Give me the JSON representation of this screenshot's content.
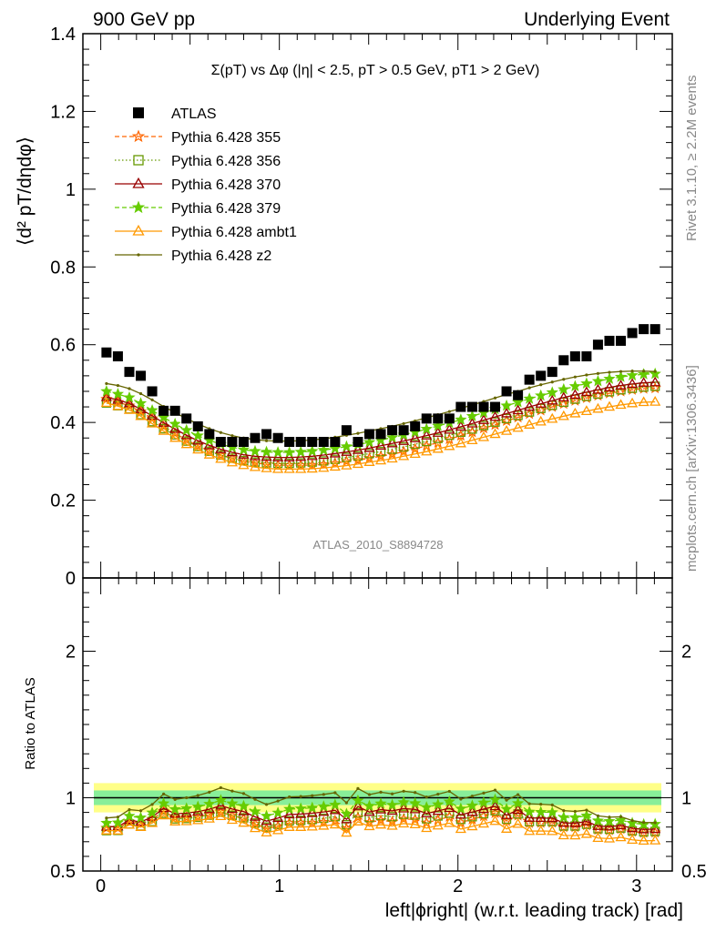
{
  "header": {
    "left": "900 GeV pp",
    "right": "Underlying Event"
  },
  "side_labels": {
    "rivet": "Rivet 3.1.10, ≥ 2.2M events",
    "mcplots": "mcplots.cern.ch [arXiv:1306.3436]"
  },
  "watermark": "ATLAS_2010_S8894728",
  "chart_data": [
    {
      "type": "scatter",
      "panel": "main",
      "title": "Σ(pT) vs Δφ (|η| < 2.5, pT > 0.5 GeV, pT1 > 2 GeV)",
      "ylabel": "⟨d² pT/dηdφ⟩",
      "xlim": [
        -0.1,
        3.2
      ],
      "ylim": [
        0,
        1.4
      ],
      "yticks": [
        "0",
        "0.2",
        "0.4",
        "0.6",
        "0.8",
        "1",
        "1.2",
        "1.4"
      ],
      "legend_placement": "top-left",
      "x": [
        0.032,
        0.096,
        0.16,
        0.224,
        0.288,
        0.352,
        0.416,
        0.48,
        0.544,
        0.608,
        0.672,
        0.736,
        0.8,
        0.864,
        0.928,
        0.992,
        1.056,
        1.12,
        1.184,
        1.248,
        1.312,
        1.376,
        1.44,
        1.504,
        1.568,
        1.632,
        1.696,
        1.76,
        1.824,
        1.888,
        1.952,
        2.016,
        2.08,
        2.144,
        2.208,
        2.272,
        2.336,
        2.4,
        2.464,
        2.528,
        2.592,
        2.656,
        2.72,
        2.784,
        2.848,
        2.912,
        2.976,
        3.04,
        3.104
      ],
      "series": [
        {
          "name": "ATLAS",
          "color": "#000000",
          "marker": "square-filled",
          "values": [
            0.58,
            0.57,
            0.53,
            0.52,
            0.48,
            0.43,
            0.43,
            0.41,
            0.39,
            0.37,
            0.35,
            0.35,
            0.35,
            0.36,
            0.37,
            0.36,
            0.35,
            0.35,
            0.35,
            0.35,
            0.35,
            0.38,
            0.35,
            0.37,
            0.37,
            0.38,
            0.38,
            0.39,
            0.41,
            0.41,
            0.41,
            0.44,
            0.44,
            0.44,
            0.44,
            0.48,
            0.47,
            0.51,
            0.52,
            0.53,
            0.56,
            0.57,
            0.57,
            0.6,
            0.61,
            0.61,
            0.63,
            0.64,
            0.64
          ]
        },
        {
          "name": "Pythia 6.428 355",
          "color": "#ff6600",
          "marker": "star-open",
          "line": "dashed",
          "values": [
            0.46,
            0.452,
            0.443,
            0.428,
            0.41,
            0.39,
            0.372,
            0.355,
            0.34,
            0.327,
            0.316,
            0.307,
            0.3,
            0.296,
            0.292,
            0.29,
            0.29,
            0.29,
            0.29,
            0.292,
            0.295,
            0.3,
            0.303,
            0.308,
            0.313,
            0.318,
            0.325,
            0.332,
            0.34,
            0.348,
            0.357,
            0.366,
            0.375,
            0.385,
            0.394,
            0.404,
            0.413,
            0.422,
            0.431,
            0.44,
            0.448,
            0.456,
            0.463,
            0.469,
            0.475,
            0.48,
            0.484,
            0.487,
            0.488
          ]
        },
        {
          "name": "Pythia 6.428 356",
          "color": "#669900",
          "marker": "square-open",
          "line": "dotted",
          "values": [
            0.45,
            0.443,
            0.435,
            0.42,
            0.402,
            0.384,
            0.368,
            0.352,
            0.338,
            0.326,
            0.316,
            0.308,
            0.302,
            0.298,
            0.296,
            0.295,
            0.295,
            0.296,
            0.298,
            0.301,
            0.305,
            0.31,
            0.314,
            0.32,
            0.325,
            0.331,
            0.337,
            0.344,
            0.351,
            0.359,
            0.367,
            0.375,
            0.383,
            0.392,
            0.401,
            0.41,
            0.418,
            0.427,
            0.436,
            0.444,
            0.452,
            0.46,
            0.467,
            0.473,
            0.479,
            0.484,
            0.488,
            0.491,
            0.493
          ]
        },
        {
          "name": "Pythia 6.428 370",
          "color": "#990000",
          "marker": "triangle-open",
          "line": "solid",
          "values": [
            0.465,
            0.458,
            0.449,
            0.434,
            0.417,
            0.399,
            0.383,
            0.367,
            0.353,
            0.341,
            0.331,
            0.323,
            0.317,
            0.313,
            0.311,
            0.31,
            0.31,
            0.311,
            0.313,
            0.316,
            0.32,
            0.324,
            0.329,
            0.334,
            0.34,
            0.346,
            0.352,
            0.359,
            0.366,
            0.373,
            0.381,
            0.389,
            0.397,
            0.406,
            0.414,
            0.423,
            0.431,
            0.44,
            0.448,
            0.456,
            0.464,
            0.471,
            0.478,
            0.484,
            0.49,
            0.495,
            0.499,
            0.502,
            0.503
          ]
        },
        {
          "name": "Pythia 6.428 379",
          "color": "#66cc00",
          "marker": "star-filled",
          "line": "dashed",
          "values": [
            0.48,
            0.473,
            0.464,
            0.449,
            0.431,
            0.413,
            0.396,
            0.38,
            0.366,
            0.354,
            0.344,
            0.336,
            0.33,
            0.326,
            0.324,
            0.323,
            0.323,
            0.324,
            0.326,
            0.329,
            0.333,
            0.338,
            0.343,
            0.349,
            0.355,
            0.361,
            0.368,
            0.375,
            0.383,
            0.391,
            0.399,
            0.407,
            0.416,
            0.425,
            0.434,
            0.443,
            0.452,
            0.461,
            0.469,
            0.477,
            0.485,
            0.493,
            0.5,
            0.506,
            0.512,
            0.517,
            0.521,
            0.524,
            0.525
          ]
        },
        {
          "name": "Pythia 6.428 ambt1",
          "color": "#ff9900",
          "marker": "triangle-open",
          "line": "solid",
          "values": [
            0.45,
            0.442,
            0.432,
            0.416,
            0.397,
            0.378,
            0.36,
            0.344,
            0.33,
            0.317,
            0.306,
            0.297,
            0.29,
            0.285,
            0.282,
            0.28,
            0.28,
            0.28,
            0.281,
            0.283,
            0.286,
            0.289,
            0.293,
            0.298,
            0.302,
            0.307,
            0.313,
            0.319,
            0.325,
            0.332,
            0.339,
            0.346,
            0.354,
            0.362,
            0.37,
            0.378,
            0.386,
            0.394,
            0.402,
            0.409,
            0.416,
            0.423,
            0.429,
            0.435,
            0.44,
            0.445,
            0.449,
            0.452,
            0.453
          ]
        },
        {
          "name": "Pythia 6.428 z2",
          "color": "#666600",
          "marker": "dot",
          "line": "solid",
          "values": [
            0.5,
            0.495,
            0.487,
            0.474,
            0.458,
            0.441,
            0.425,
            0.41,
            0.396,
            0.384,
            0.374,
            0.366,
            0.36,
            0.356,
            0.353,
            0.352,
            0.352,
            0.353,
            0.355,
            0.358,
            0.362,
            0.367,
            0.372,
            0.378,
            0.384,
            0.39,
            0.397,
            0.404,
            0.412,
            0.42,
            0.428,
            0.436,
            0.445,
            0.454,
            0.463,
            0.472,
            0.48,
            0.489,
            0.497,
            0.504,
            0.511,
            0.517,
            0.522,
            0.526,
            0.529,
            0.531,
            0.532,
            0.532,
            0.531
          ]
        }
      ]
    },
    {
      "type": "scatter",
      "panel": "ratio",
      "xlabel": "left|ϕright| (w.r.t. leading track) [rad]",
      "ylabel": "Ratio to ATLAS",
      "xlim": [
        -0.1,
        3.2
      ],
      "ylim": [
        0.5,
        2.5
      ],
      "xticks": [
        "0",
        "1",
        "2",
        "3"
      ],
      "yticks": [
        "0.5",
        "1",
        "2"
      ],
      "band_inner": [
        0.95,
        1.05
      ],
      "band_outer": [
        0.9,
        1.1
      ]
    }
  ]
}
